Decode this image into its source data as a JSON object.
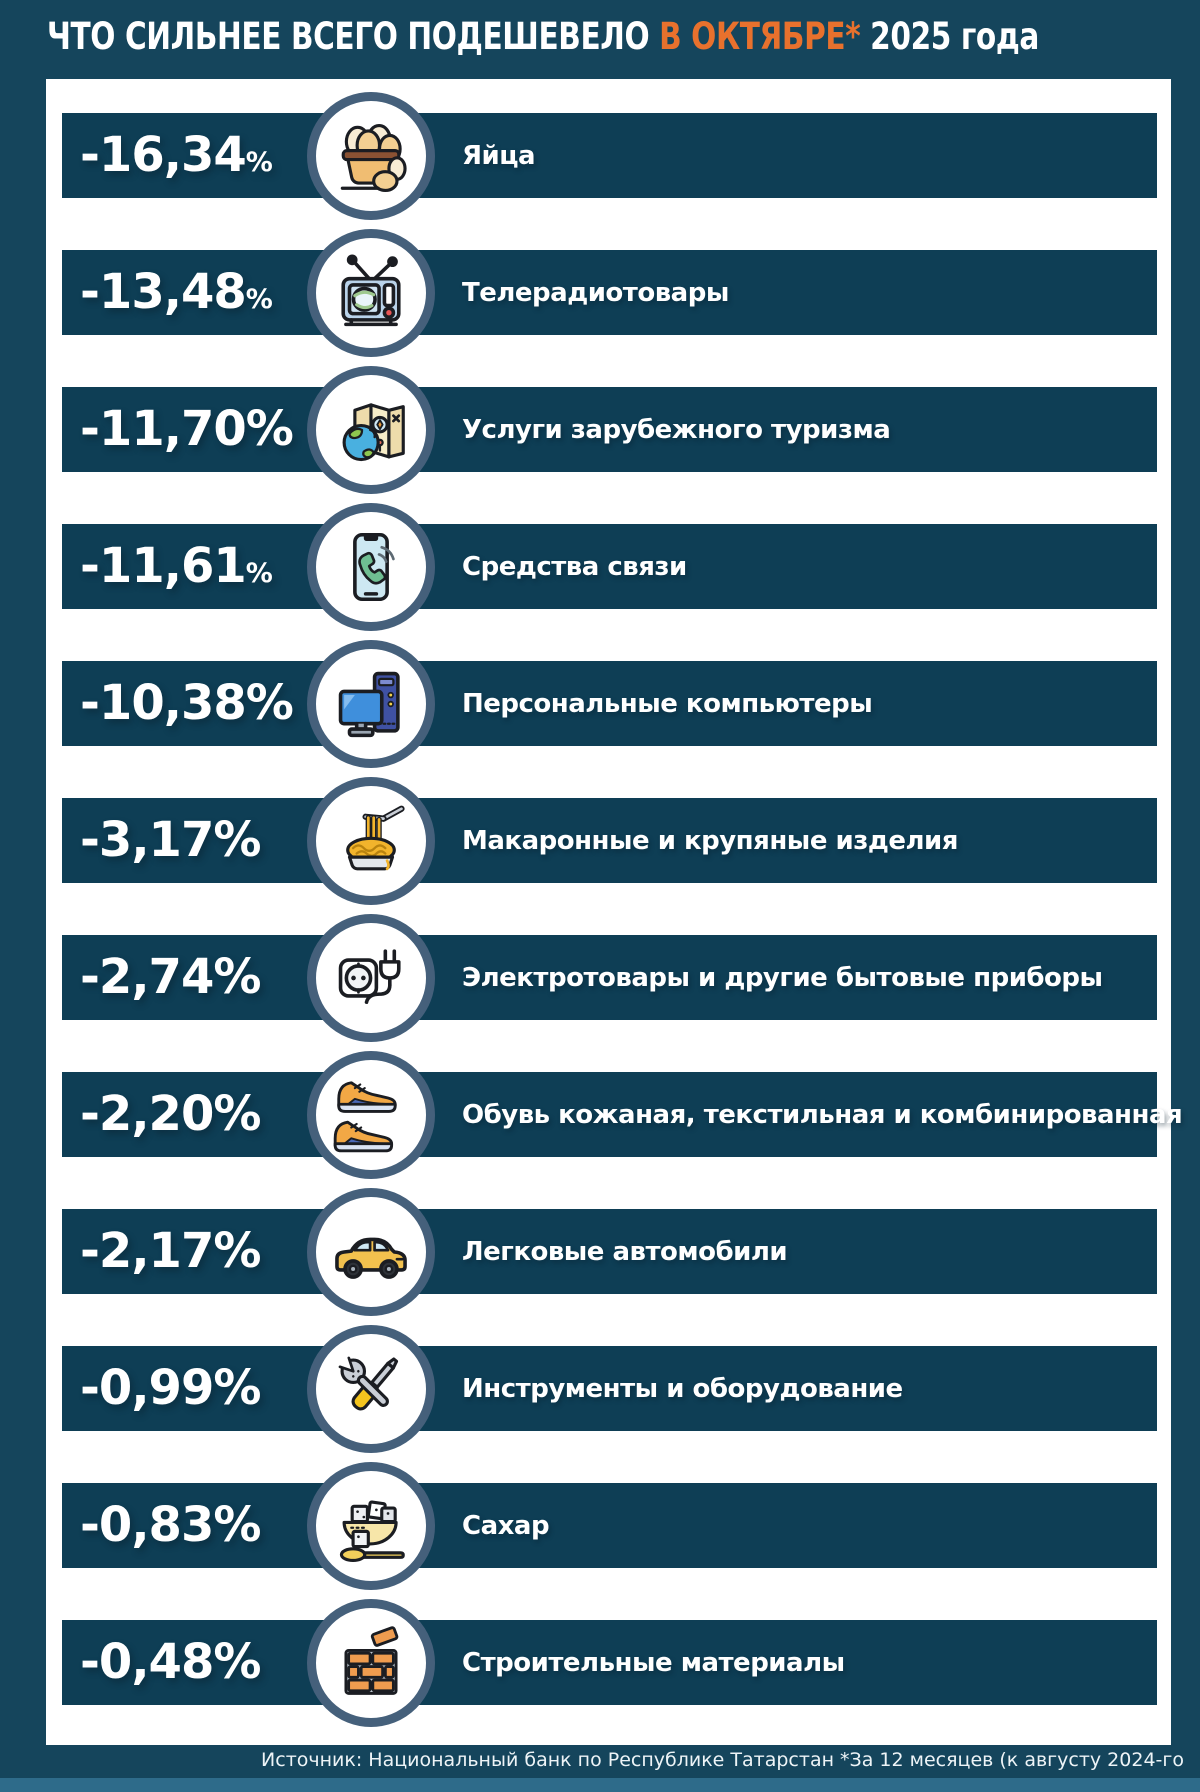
{
  "title": {
    "prefix": "ЧТО СИЛЬНЕЕ ВСЕГО ПОДЕШЕВЕЛО ",
    "highlight": "В ОКТЯБРЕ*",
    "suffix": " 2025 года"
  },
  "rows": [
    {
      "value": "-16,34",
      "unit": "%",
      "small_percent": true,
      "label": "Яйца",
      "icon": "eggs-basket-icon"
    },
    {
      "value": "-13,48",
      "unit": "%",
      "small_percent": true,
      "label": "Телерадиотовары",
      "icon": "tv-icon"
    },
    {
      "value": "-11,70",
      "unit": "%",
      "small_percent": false,
      "label": "Услуги зарубежного туризма",
      "icon": "travel-map-icon"
    },
    {
      "value": "-11,61",
      "unit": "%",
      "small_percent": true,
      "label": "Средства связи",
      "icon": "smartphone-icon"
    },
    {
      "value": "-10,38",
      "unit": "%",
      "small_percent": false,
      "label": "Персональные компьютеры",
      "icon": "desktop-computer-icon"
    },
    {
      "value": "-3,17",
      "unit": "%",
      "small_percent": false,
      "label": "Макаронные и крупяные изделия",
      "icon": "pasta-icon"
    },
    {
      "value": "-2,74",
      "unit": "%",
      "small_percent": false,
      "label": "Электротовары и другие бытовые приборы",
      "icon": "plug-socket-icon"
    },
    {
      "value": "-2,20",
      "unit": "%",
      "small_percent": false,
      "label": "Обувь кожаная, текстильная и комбинированная",
      "icon": "sneakers-icon"
    },
    {
      "value": "-2,17",
      "unit": "%",
      "small_percent": false,
      "label": "Легковые автомобили",
      "icon": "car-icon"
    },
    {
      "value": "-0,99",
      "unit": "%",
      "small_percent": false,
      "label": "Инструменты и оборудование",
      "icon": "tools-icon"
    },
    {
      "value": "-0,83",
      "unit": "%",
      "small_percent": false,
      "label": "Сахар",
      "icon": "sugar-icon"
    },
    {
      "value": "-0,48",
      "unit": "%",
      "small_percent": false,
      "label": "Строительные материалы",
      "icon": "bricks-icon"
    }
  ],
  "footer": {
    "source": "Источник: Национальный банк по Республике Татарстан *За 12 месяцев (к августу 2024-го"
  },
  "colors": {
    "background": "#15455c",
    "bar": "#0e3e55",
    "panel": "#ffffff",
    "accent_orange": "#e8712d",
    "circle_border": "#45607b",
    "bottom_strip": "#2e6b8a",
    "text": "#ffffff"
  },
  "chart_data": {
    "type": "bar",
    "title": "ЧТО СИЛЬНЕЕ ВСЕГО ПОДЕШЕВЕЛО В ОКТЯБРЕ* 2025 года",
    "categories": [
      "Яйца",
      "Телерадиотовары",
      "Услуги зарубежного туризма",
      "Средства связи",
      "Персональные компьютеры",
      "Макаронные и крупяные изделия",
      "Электротовары и другие бытовые приборы",
      "Обувь кожаная, текстильная и комбинированная",
      "Легковые автомобили",
      "Инструменты и оборудование",
      "Сахар",
      "Строительные материалы"
    ],
    "values": [
      -16.34,
      -13.48,
      -11.7,
      -11.61,
      -10.38,
      -3.17,
      -2.74,
      -2.2,
      -2.17,
      -0.99,
      -0.83,
      -0.48
    ],
    "unit": "%",
    "note": "Источник: Национальный банк по Республике Татарстан *За 12 месяцев (к августу 2024-го"
  }
}
